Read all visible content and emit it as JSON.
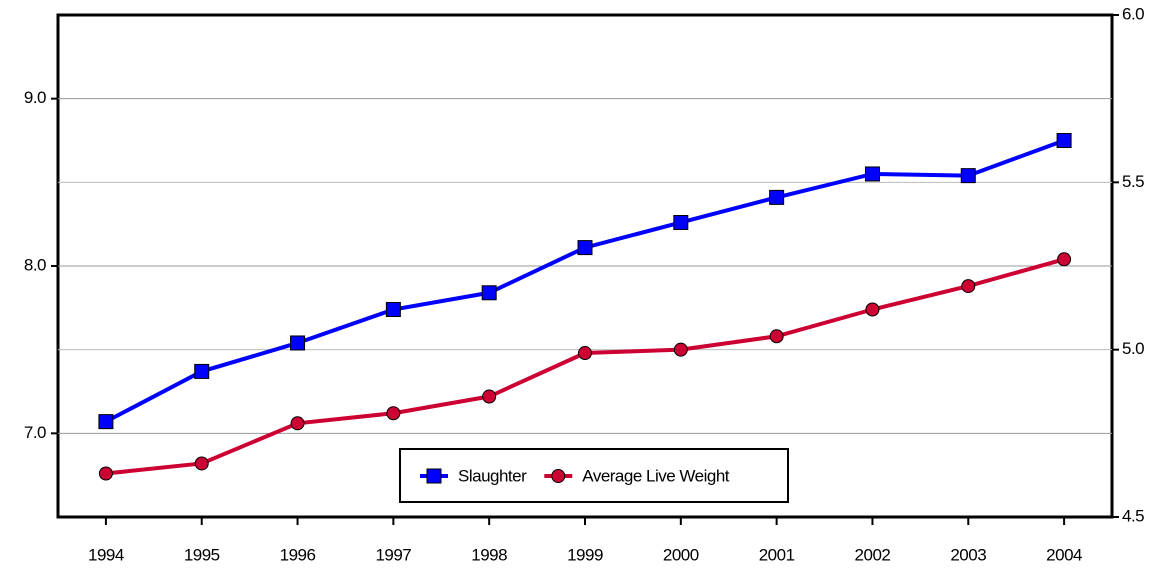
{
  "chart_data": {
    "type": "line",
    "categories": [
      "1994",
      "1995",
      "1996",
      "1997",
      "1998",
      "1999",
      "2000",
      "2001",
      "2002",
      "2003",
      "2004"
    ],
    "series": [
      {
        "name": "Slaughter",
        "color": "#0000ff",
        "marker": "square",
        "values": [
          7.07,
          7.37,
          7.54,
          7.74,
          7.84,
          8.11,
          8.26,
          8.41,
          8.55,
          8.54,
          8.75
        ]
      },
      {
        "name": "Average Live Weight",
        "color": "#cc0033",
        "marker": "circle",
        "axis": "y2",
        "values": [
          4.63,
          4.66,
          4.78,
          4.81,
          4.86,
          4.99,
          5.0,
          5.04,
          5.12,
          5.19,
          5.27
        ]
      }
    ],
    "ylim": [
      6.5,
      9.5
    ],
    "yticks": [
      {
        "value": 7,
        "label": "7.0"
      },
      {
        "value": 8,
        "label": "8.0"
      },
      {
        "value": 9,
        "label": "9.0"
      }
    ],
    "y2lim": [
      4.5,
      6.0
    ],
    "y2ticks": [
      4.5,
      {
        "value": 5,
        "label": "5.0"
      },
      5.5,
      {
        "value": 6,
        "label": "6.0"
      }
    ],
    "grid": true,
    "legend": "bottom"
  }
}
